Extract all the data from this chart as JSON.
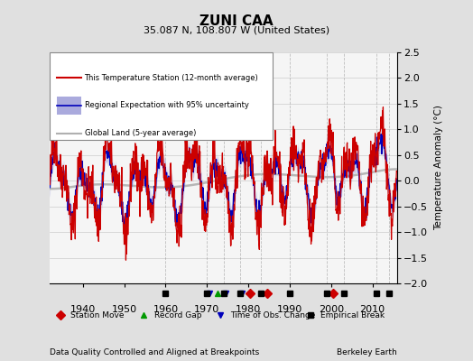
{
  "title": "ZUNI CAA",
  "subtitle": "35.087 N, 108.807 W (United States)",
  "footer_left": "Data Quality Controlled and Aligned at Breakpoints",
  "footer_right": "Berkeley Earth",
  "ylabel": "Temperature Anomaly (°C)",
  "xlim": [
    1932,
    2016
  ],
  "ylim": [
    -2.0,
    2.5
  ],
  "yticks": [
    -2,
    -1.5,
    -1,
    -0.5,
    0,
    0.5,
    1,
    1.5,
    2,
    2.5
  ],
  "xticks": [
    1940,
    1950,
    1960,
    1970,
    1980,
    1990,
    2000,
    2010
  ],
  "station_moves": [
    1980.5,
    1984.5,
    2000.5
  ],
  "record_gaps": [
    1972.5
  ],
  "tobs_changes": [
    1970.5,
    1974.5,
    1978.5
  ],
  "empirical_breaks": [
    1960,
    1970,
    1974,
    1978,
    1983,
    1990,
    1999,
    2003,
    2011,
    2014
  ],
  "bg_color": "#e0e0e0",
  "plot_bg": "#f5f5f5",
  "red_color": "#cc0000",
  "blue_color": "#0000bb",
  "blue_fill": "#aaaadd",
  "gray_color": "#b0b0b0",
  "legend_entries": [
    "This Temperature Station (12-month average)",
    "Regional Expectation with 95% uncertainty",
    "Global Land (5-year average)"
  ]
}
